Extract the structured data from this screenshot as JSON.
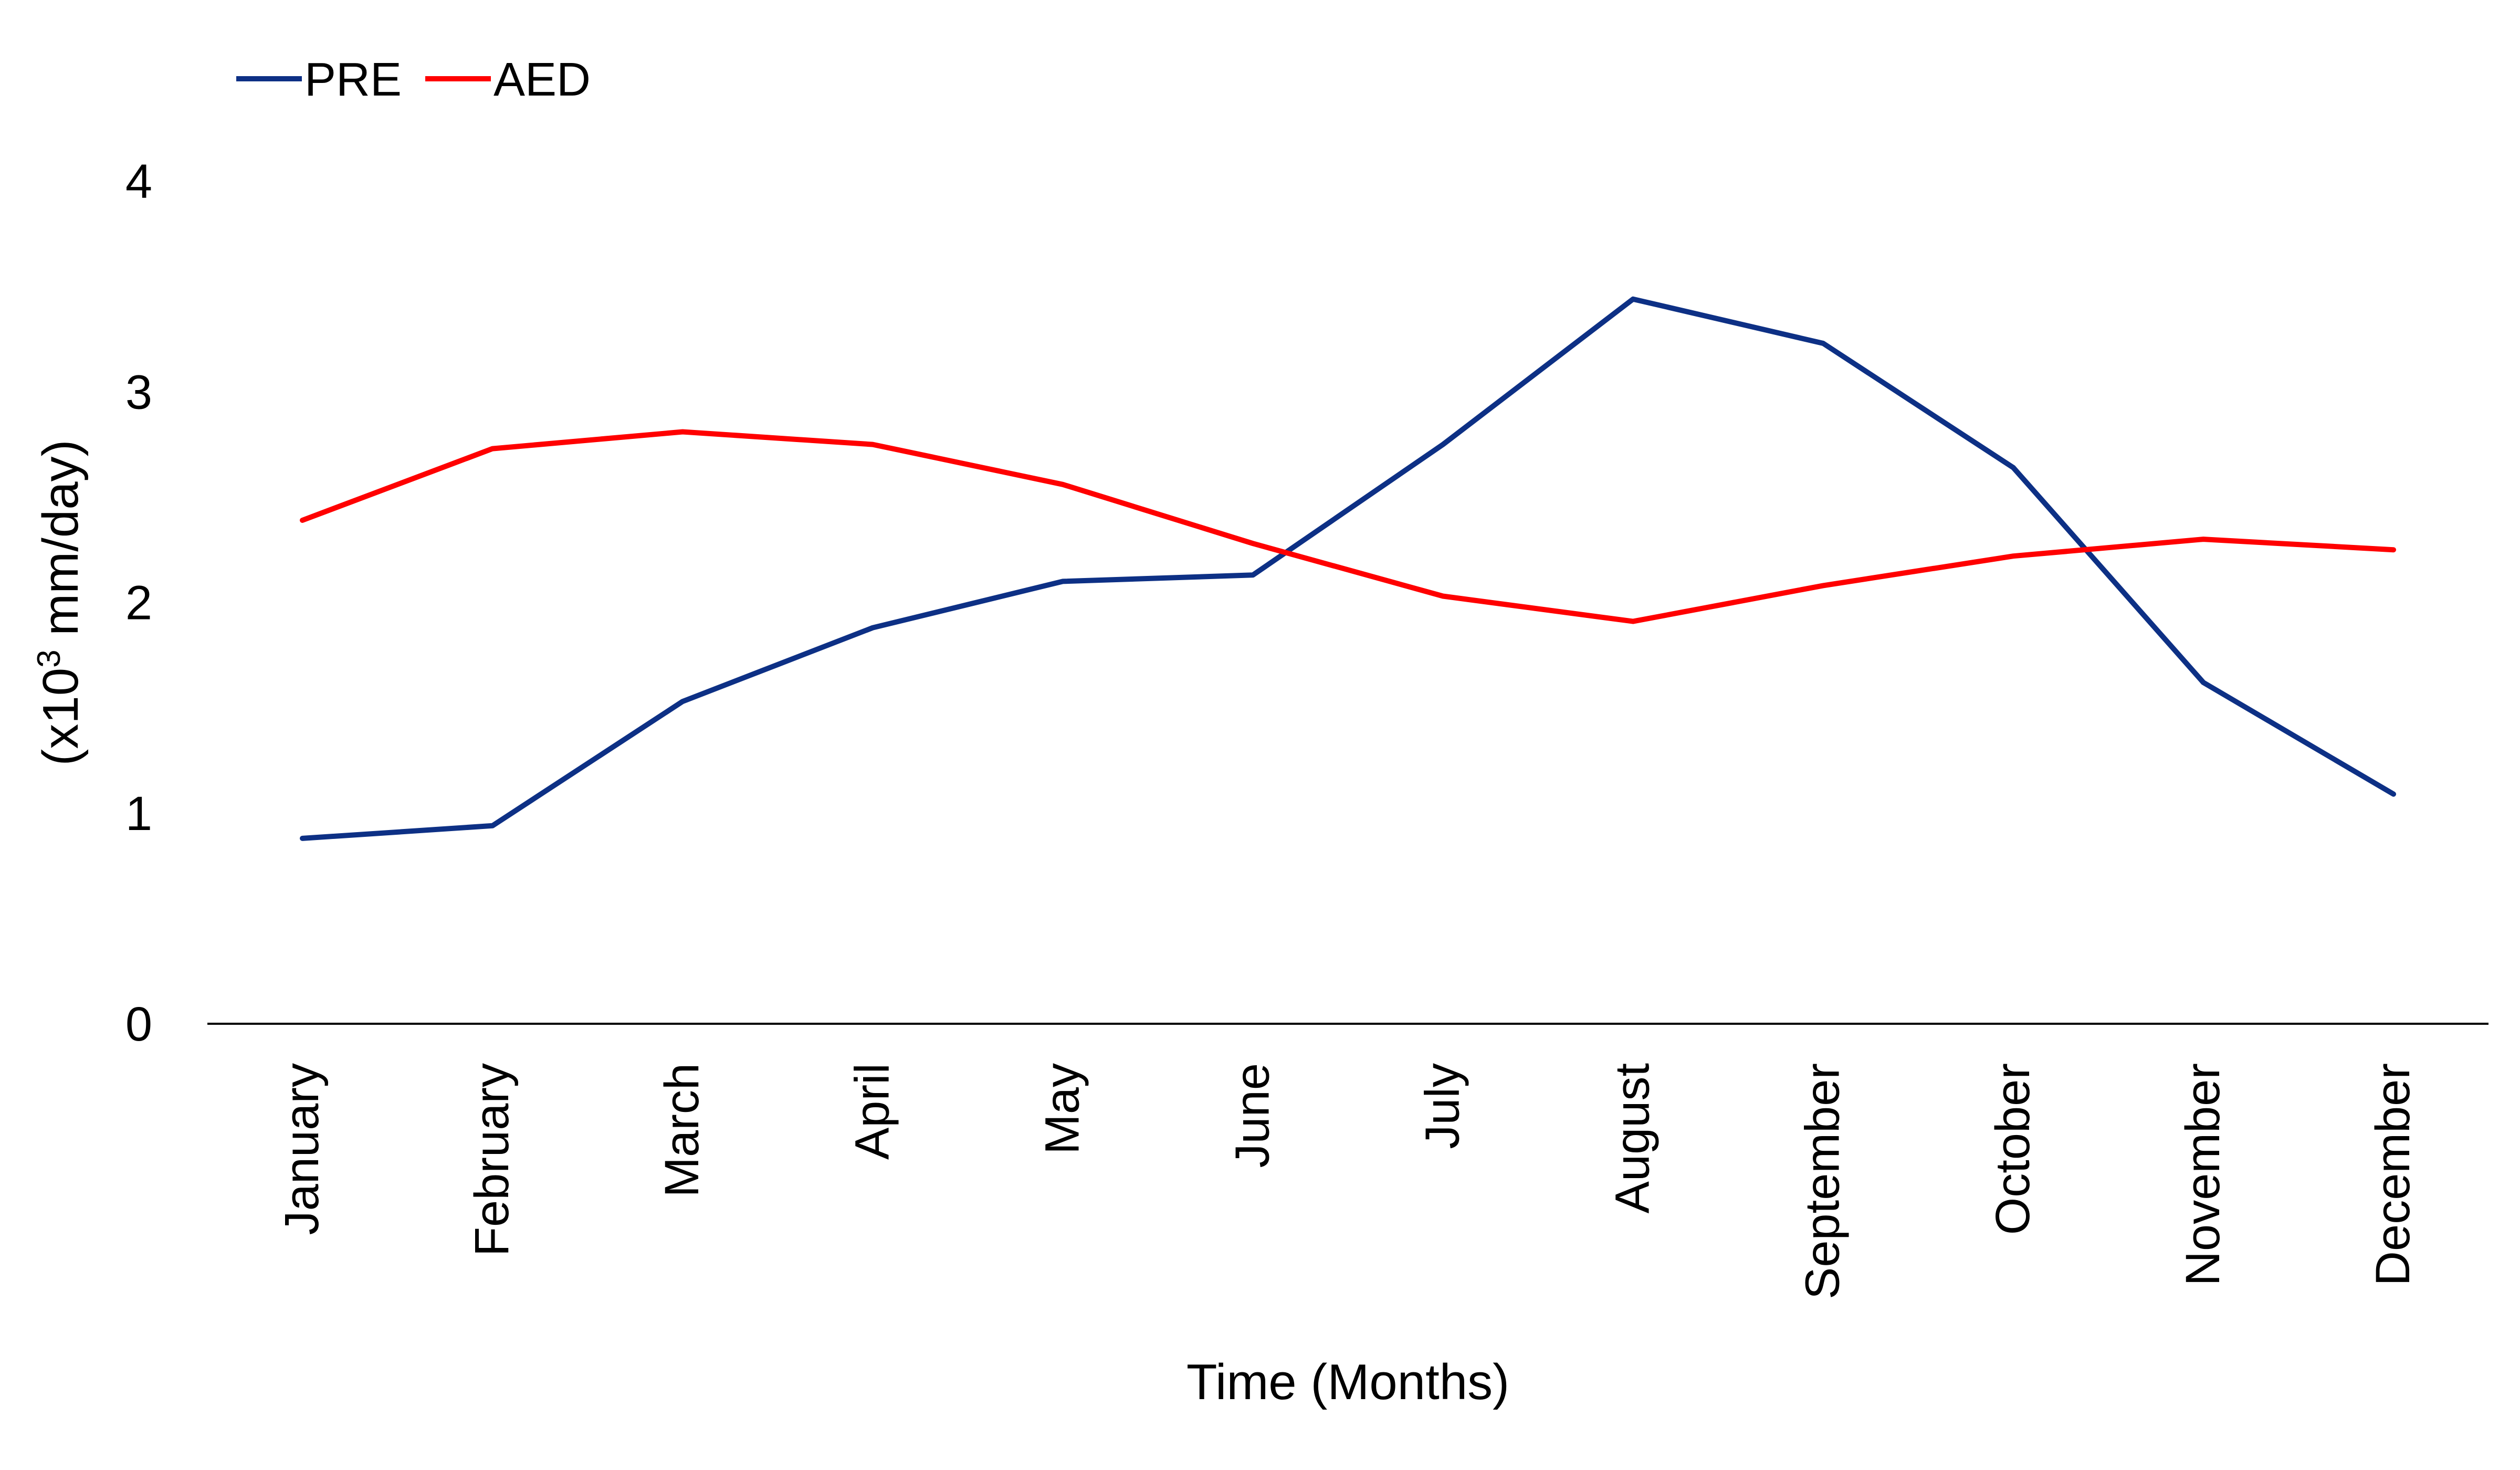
{
  "chart_data": {
    "type": "line",
    "categories": [
      "January",
      "February",
      "March",
      "April",
      "May",
      "June",
      "July",
      "August",
      "September",
      "October",
      "November",
      "December"
    ],
    "series": [
      {
        "name": "PRE",
        "color": "#0D3085",
        "values": [
          0.88,
          0.94,
          1.53,
          1.88,
          2.1,
          2.13,
          2.75,
          3.44,
          3.23,
          2.64,
          1.62,
          1.09
        ]
      },
      {
        "name": "AED",
        "color": "#FF0000",
        "values": [
          2.39,
          2.73,
          2.81,
          2.75,
          2.56,
          2.28,
          2.03,
          1.91,
          2.08,
          2.22,
          2.3,
          2.25
        ]
      }
    ],
    "title": "",
    "xlabel": "Time (Months)",
    "ylabel_prefix": "(x10",
    "ylabel_sup": "3",
    "ylabel_suffix": " mm/day)",
    "ylim": [
      0,
      4
    ],
    "yticks": [
      0,
      1,
      2,
      3,
      4
    ],
    "grid": false,
    "legend_position": "top-left"
  }
}
